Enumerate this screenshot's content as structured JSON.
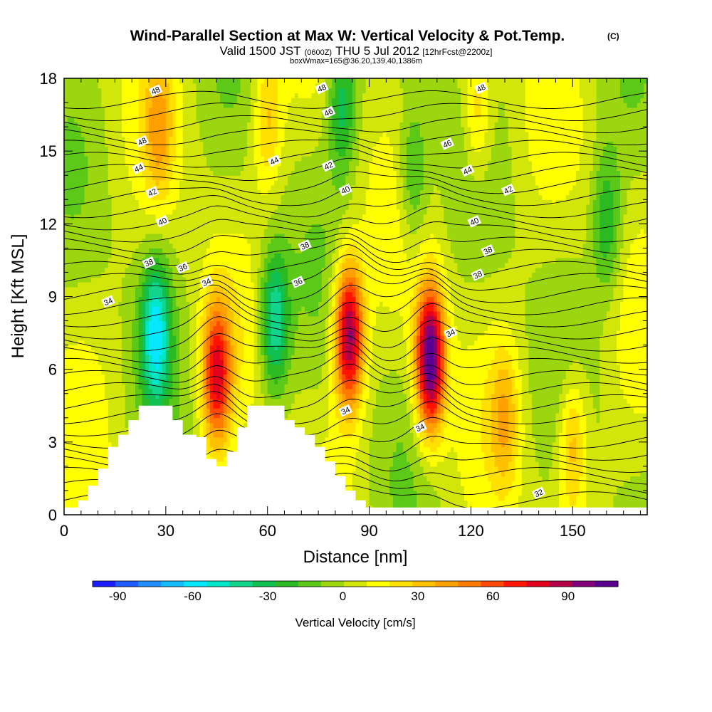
{
  "chart_data": {
    "type": "heatmap",
    "title": "Wind-Parallel Section at Max W: Vertical Velocity & Pot.Temp.",
    "title_mark": "(C)",
    "subtitle_parts": [
      "Valid 1500 JST",
      "(0600Z)",
      "THU 5 Jul 2012",
      "[12hrFcst@2200z]"
    ],
    "subtitle2": "boxWmax=165@36.20,139.40,1386m",
    "xlabel": "Distance [nm]",
    "ylabel": "Height [Kft MSL]",
    "xlim": [
      0,
      172
    ],
    "ylim": [
      0,
      18
    ],
    "x_ticks": [
      0,
      30,
      60,
      90,
      120,
      150
    ],
    "y_ticks": [
      0,
      3,
      6,
      9,
      12,
      15,
      18
    ],
    "colorbar": {
      "label": "Vertical Velocity [cm/s]",
      "ticks": [
        -90,
        -60,
        -30,
        0,
        30,
        60,
        90
      ],
      "min": -100,
      "max": 110,
      "colors": [
        "#1c1cff",
        "#1e5cff",
        "#1f8cff",
        "#14bcff",
        "#06e8ff",
        "#00e6c8",
        "#12d48a",
        "#10c050",
        "#2cba22",
        "#5cc818",
        "#9cd60e",
        "#d2e60a",
        "#ffff00",
        "#ffe000",
        "#ffc000",
        "#ffa000",
        "#ff7a00",
        "#ff4800",
        "#ff1400",
        "#e4001c",
        "#b40046",
        "#84007a",
        "#5a0090"
      ]
    },
    "updrafts": [
      {
        "x": 45,
        "y": 5.8,
        "peak": 72
      },
      {
        "x": 84,
        "y": 7.4,
        "peak": 95
      },
      {
        "x": 108,
        "y": 6.4,
        "peak": 108
      },
      {
        "x": 60,
        "y": 16.4,
        "peak": 28
      },
      {
        "x": 122,
        "y": 16.6,
        "peak": 28
      },
      {
        "x": 28,
        "y": 16.0,
        "peak": 30
      },
      {
        "x": 150,
        "y": 3.0,
        "peak": 35
      },
      {
        "x": 130,
        "y": 4.0,
        "peak": 28
      }
    ],
    "downdrafts": [
      {
        "x": 27,
        "y": 7.5,
        "peak": -55
      },
      {
        "x": 62,
        "y": 8.0,
        "peak": -50
      },
      {
        "x": 82,
        "y": 17.0,
        "peak": -35
      },
      {
        "x": 103,
        "y": 14.0,
        "peak": -28
      },
      {
        "x": 160,
        "y": 12.0,
        "peak": -30
      }
    ],
    "terrain": [
      {
        "x": 0,
        "h": 0.3
      },
      {
        "x": 4,
        "h": 0.6
      },
      {
        "x": 7,
        "h": 1.2
      },
      {
        "x": 10,
        "h": 1.9
      },
      {
        "x": 13,
        "h": 2.8
      },
      {
        "x": 16,
        "h": 3.3
      },
      {
        "x": 19,
        "h": 3.9
      },
      {
        "x": 22,
        "h": 4.5
      },
      {
        "x": 29,
        "h": 4.5
      },
      {
        "x": 32,
        "h": 3.9
      },
      {
        "x": 35,
        "h": 3.3
      },
      {
        "x": 39,
        "h": 3.2
      },
      {
        "x": 42,
        "h": 2.3
      },
      {
        "x": 45,
        "h": 2.0
      },
      {
        "x": 48,
        "h": 2.6
      },
      {
        "x": 51,
        "h": 3.6
      },
      {
        "x": 54,
        "h": 4.5
      },
      {
        "x": 62,
        "h": 4.5
      },
      {
        "x": 65,
        "h": 3.9
      },
      {
        "x": 68,
        "h": 3.6
      },
      {
        "x": 71,
        "h": 3.3
      },
      {
        "x": 74,
        "h": 2.8
      },
      {
        "x": 77,
        "h": 2.2
      },
      {
        "x": 80,
        "h": 1.6
      },
      {
        "x": 83,
        "h": 1.0
      },
      {
        "x": 86,
        "h": 0.6
      },
      {
        "x": 89,
        "h": 0.3
      },
      {
        "x": 172,
        "h": 0.3
      }
    ],
    "theta_contours": {
      "interval_k": 1,
      "labeled_values": [
        32,
        34,
        36,
        38,
        40,
        42,
        44,
        46,
        48
      ],
      "labels": [
        {
          "v": "48",
          "x": 27,
          "y": 17.5
        },
        {
          "v": "48",
          "x": 23,
          "y": 15.4
        },
        {
          "v": "44",
          "x": 22,
          "y": 14.3
        },
        {
          "v": "42",
          "x": 26,
          "y": 13.3
        },
        {
          "v": "40",
          "x": 29,
          "y": 12.1
        },
        {
          "v": "38",
          "x": 25,
          "y": 10.4
        },
        {
          "v": "36",
          "x": 35,
          "y": 10.2
        },
        {
          "v": "34",
          "x": 42,
          "y": 9.6
        },
        {
          "v": "34",
          "x": 13,
          "y": 8.8
        },
        {
          "v": "48",
          "x": 76,
          "y": 17.6
        },
        {
          "v": "46",
          "x": 78,
          "y": 16.6
        },
        {
          "v": "44",
          "x": 62,
          "y": 14.6
        },
        {
          "v": "42",
          "x": 78,
          "y": 14.4
        },
        {
          "v": "40",
          "x": 83,
          "y": 13.4
        },
        {
          "v": "38",
          "x": 71,
          "y": 11.1
        },
        {
          "v": "36",
          "x": 69,
          "y": 9.6
        },
        {
          "v": "48",
          "x": 123,
          "y": 17.6
        },
        {
          "v": "46",
          "x": 113,
          "y": 15.3
        },
        {
          "v": "44",
          "x": 119,
          "y": 14.2
        },
        {
          "v": "42",
          "x": 131,
          "y": 13.4
        },
        {
          "v": "40",
          "x": 121,
          "y": 12.1
        },
        {
          "v": "38",
          "x": 125,
          "y": 10.9
        },
        {
          "v": "38",
          "x": 122,
          "y": 9.9
        },
        {
          "v": "34",
          "x": 114,
          "y": 7.5
        },
        {
          "v": "34",
          "x": 83,
          "y": 4.3
        },
        {
          "v": "34",
          "x": 105,
          "y": 3.6
        },
        {
          "v": "32",
          "x": 140,
          "y": 0.9
        }
      ]
    }
  }
}
